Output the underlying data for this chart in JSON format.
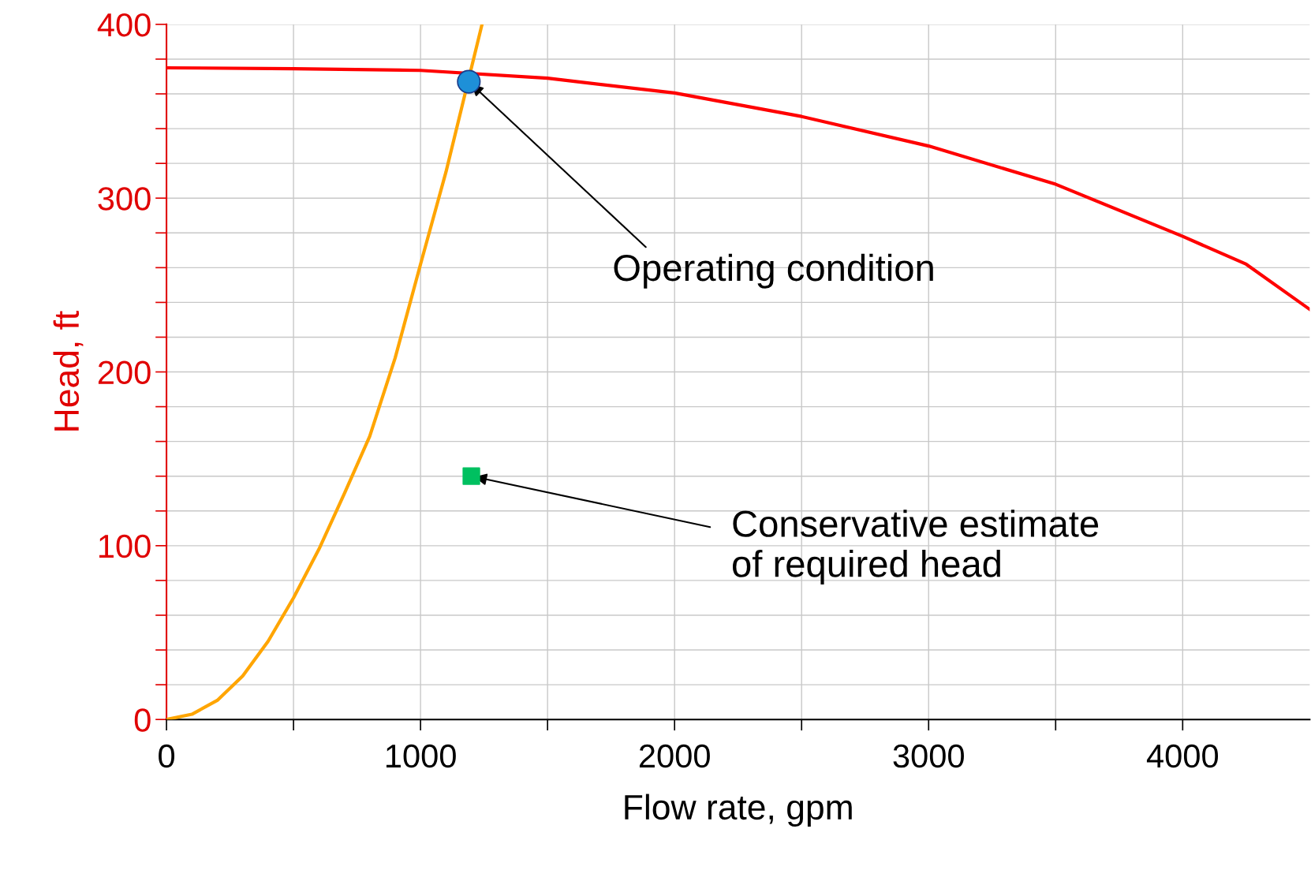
{
  "chart_data": {
    "type": "line",
    "xlabel": "Flow rate, gpm",
    "ylabel": "Head, ft",
    "xlim": [
      0,
      4500
    ],
    "ylim": [
      0,
      400
    ],
    "xticks": [
      0,
      {
        "value": 500,
        "label": null
      },
      1000,
      {
        "value": 1500,
        "label": null
      },
      2000,
      {
        "value": 2500,
        "label": null
      },
      3000,
      {
        "value": 3500,
        "label": null
      },
      4000
    ],
    "yticks": [
      0,
      {
        "value": 20,
        "label": null
      },
      {
        "value": 40,
        "label": null
      },
      {
        "value": 60,
        "label": null
      },
      {
        "value": 80,
        "label": null
      },
      100,
      {
        "value": 120,
        "label": null
      },
      {
        "value": 140,
        "label": null
      },
      {
        "value": 160,
        "label": null
      },
      {
        "value": 180,
        "label": null
      },
      200,
      {
        "value": 220,
        "label": null
      },
      {
        "value": 240,
        "label": null
      },
      {
        "value": 260,
        "label": null
      },
      {
        "value": 280,
        "label": null
      },
      300,
      {
        "value": 320,
        "label": null
      },
      {
        "value": 340,
        "label": null
      },
      {
        "value": 360,
        "label": null
      },
      {
        "value": 380,
        "label": null
      },
      400
    ],
    "grid": true,
    "legend": false,
    "series": [
      {
        "color": "#ff0000",
        "marker": "none",
        "x": [
          0,
          500,
          1000,
          1500,
          2000,
          2500,
          3000,
          3500,
          4000,
          4250,
          4500
        ],
        "values": [
          375,
          374.5,
          373.5,
          369,
          360.5,
          347,
          330,
          308,
          278,
          262,
          236
        ]
      },
      {
        "color": "#ffa500",
        "marker": "none",
        "x": [
          0,
          100,
          200,
          300,
          400,
          500,
          600,
          700,
          800,
          900,
          1000,
          1100,
          1242
        ],
        "values": [
          0,
          3,
          11,
          25,
          45,
          70,
          98,
          130,
          163,
          208,
          262,
          315,
          400
        ]
      },
      {
        "type": "scatter",
        "color": "#1e90d8",
        "marker": "circle",
        "x": [
          1190
        ],
        "values": [
          367
        ]
      },
      {
        "type": "scatter",
        "color": "#00c060",
        "marker": "square",
        "x": [
          1200
        ],
        "values": [
          140
        ]
      }
    ],
    "annotations": [
      {
        "text": "Operating condition",
        "x": 1190,
        "y": 367
      },
      {
        "text": "Conservative estimate\nof required head",
        "x": 1200,
        "y": 140
      }
    ]
  }
}
